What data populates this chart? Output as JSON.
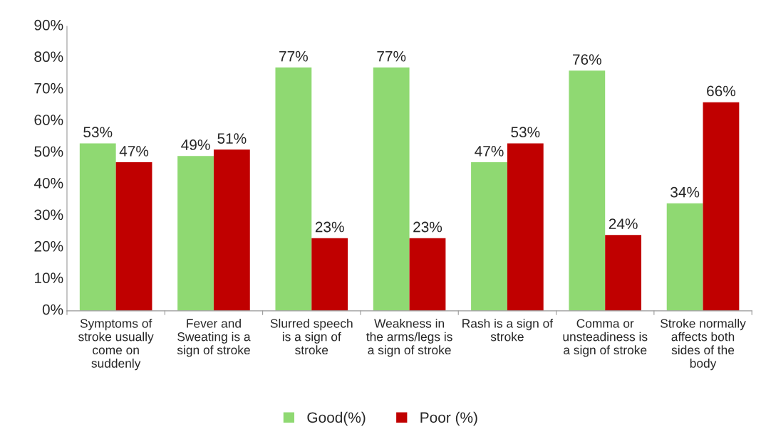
{
  "chart_data": {
    "type": "bar",
    "categories": [
      "Symptoms of\nstroke usually\ncome on\nsuddenly",
      "Fever and\nSweating is a\nsign of stroke",
      "Slurred speech\nis a sign of\nstroke",
      "Weakness in\nthe arms/legs is\na sign of stroke",
      "Rash is a sign of\nstroke",
      "Comma or\nunsteadiness is\na sign of stroke",
      "Stroke normally\naffects both\nsides of the\nbody"
    ],
    "series": [
      {
        "name": "Good(%)",
        "color": "#8fd972",
        "values": [
          53,
          49,
          77,
          77,
          47,
          76,
          34
        ],
        "value_labels": [
          "53%",
          "49%",
          "77%",
          "77%",
          "47%",
          "76%",
          "34%"
        ]
      },
      {
        "name": "Poor (%)",
        "color": "#c00000",
        "values": [
          47,
          51,
          23,
          23,
          53,
          24,
          66
        ],
        "value_labels": [
          "47%",
          "51%",
          "23%",
          "23%",
          "53%",
          "24%",
          "66%"
        ]
      }
    ],
    "ylim": [
      0,
      90
    ],
    "yticks": [
      {
        "value": 0,
        "label": "0%"
      },
      {
        "value": 10,
        "label": "10%"
      },
      {
        "value": 20,
        "label": "20%"
      },
      {
        "value": 30,
        "label": "30%"
      },
      {
        "value": 40,
        "label": "40%"
      },
      {
        "value": 50,
        "label": "50%"
      },
      {
        "value": 60,
        "label": "60%"
      },
      {
        "value": 70,
        "label": "70%"
      },
      {
        "value": 80,
        "label": "80%"
      },
      {
        "value": 90,
        "label": "90%"
      }
    ],
    "grid": false,
    "legend": "bottom"
  }
}
